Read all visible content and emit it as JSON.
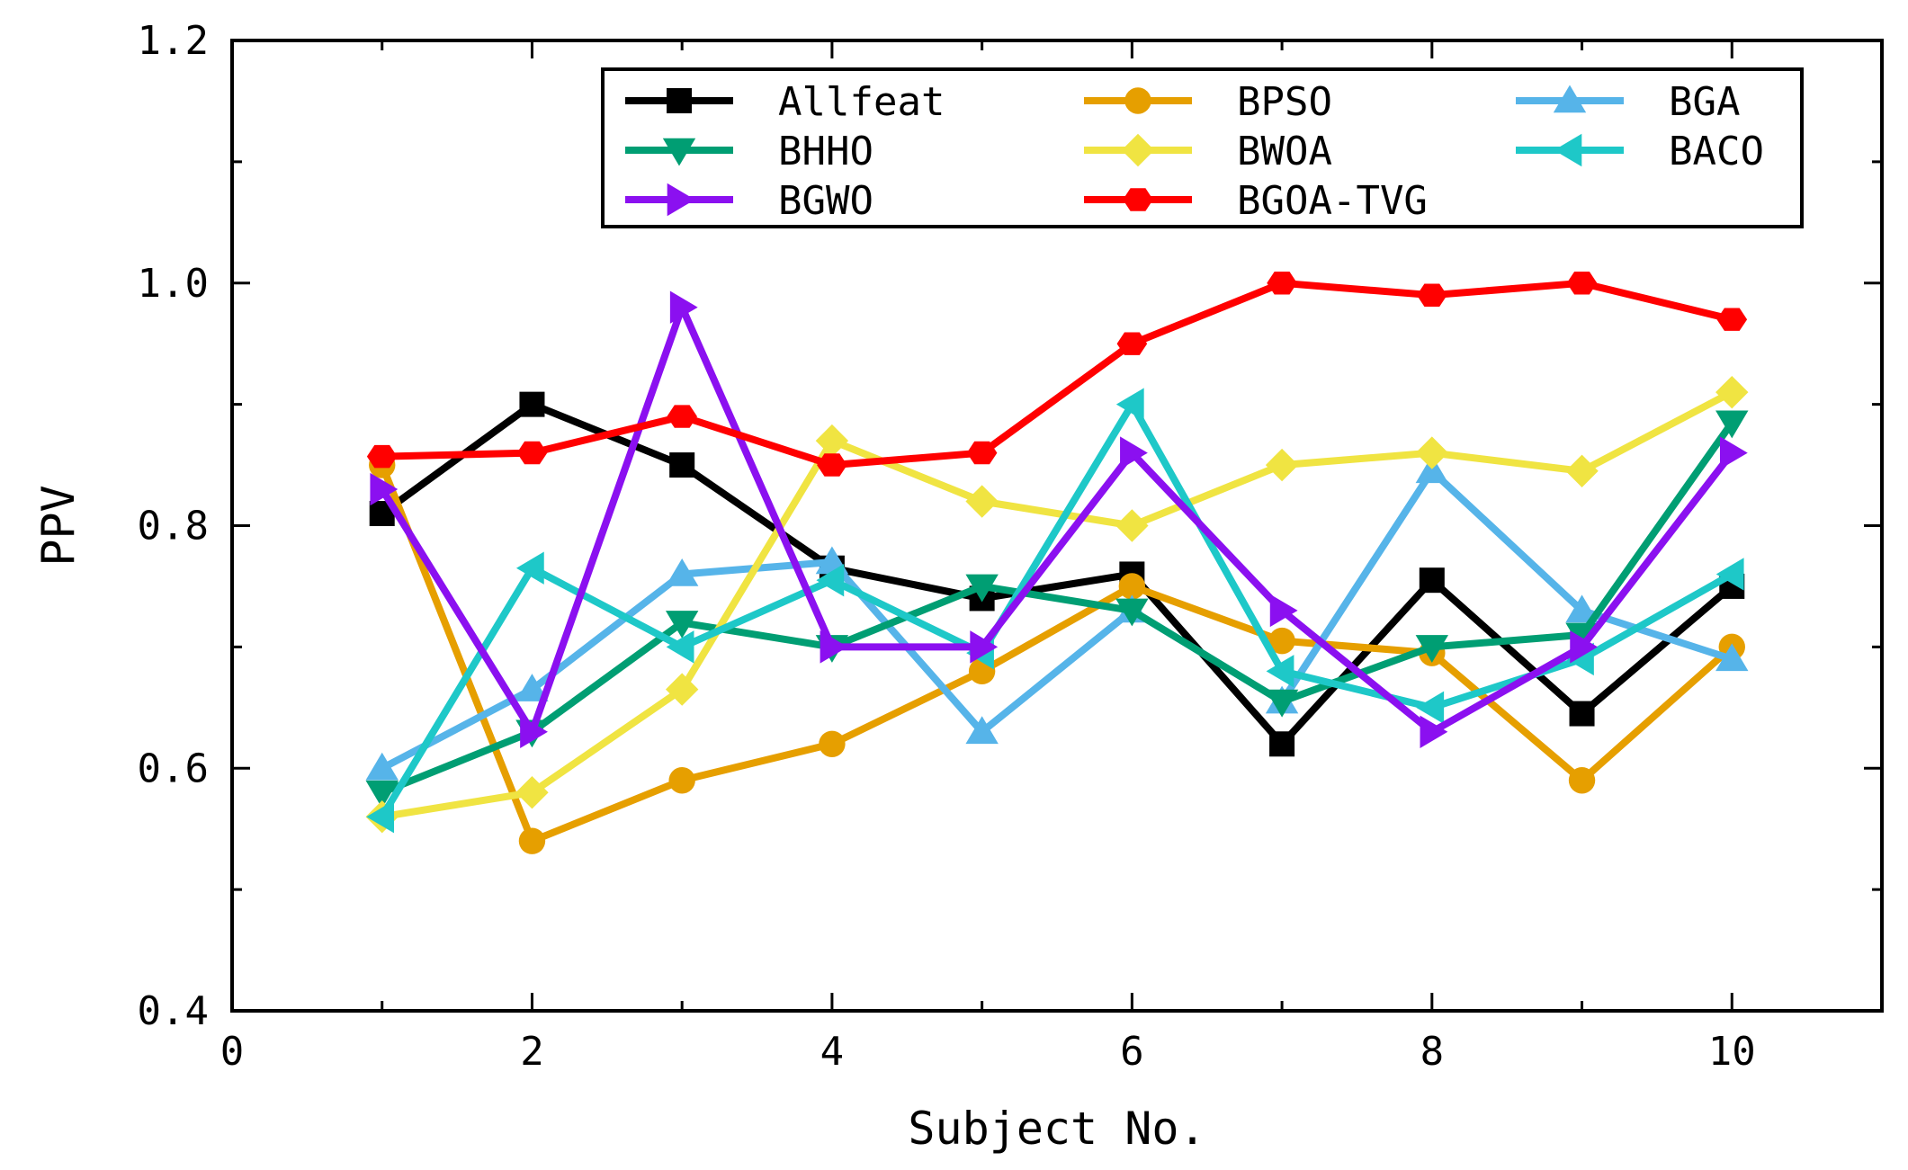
{
  "chart_data": {
    "type": "line",
    "title": "",
    "xlabel": "Subject No.",
    "ylabel": "PPV",
    "xlim": [
      0,
      11
    ],
    "ylim": [
      0.4,
      1.2
    ],
    "xticks": [
      0,
      2,
      4,
      6,
      8,
      10
    ],
    "xtick_labels": [
      "0",
      "2",
      "4",
      "6",
      "8",
      "10"
    ],
    "yticks": [
      0.4,
      0.6,
      0.8,
      1.0,
      1.2
    ],
    "ytick_labels": [
      "0.4",
      "0.6",
      "0.8",
      "1.0",
      "1.2"
    ],
    "grid": false,
    "legend_position": "top-right",
    "x": [
      1,
      2,
      3,
      4,
      5,
      6,
      7,
      8,
      9,
      10
    ],
    "series": [
      {
        "name": "Allfeat",
        "color": "#000000",
        "marker": "square",
        "values": [
          0.81,
          0.9,
          0.85,
          0.765,
          0.74,
          0.76,
          0.62,
          0.755,
          0.645,
          0.75
        ]
      },
      {
        "name": "BPSO",
        "color": "#E69F00",
        "marker": "circle",
        "values": [
          0.85,
          0.54,
          0.59,
          0.62,
          0.68,
          0.75,
          0.705,
          0.695,
          0.59,
          0.7
        ]
      },
      {
        "name": "BGA",
        "color": "#56B4E9",
        "marker": "triangle-up",
        "values": [
          0.6,
          0.665,
          0.76,
          0.77,
          0.63,
          0.73,
          0.655,
          0.845,
          0.73,
          0.69
        ]
      },
      {
        "name": "BHHO",
        "color": "#009E73",
        "marker": "triangle-down",
        "values": [
          0.58,
          0.63,
          0.72,
          0.7,
          0.75,
          0.73,
          0.655,
          0.7,
          0.71,
          0.885
        ]
      },
      {
        "name": "BWOA",
        "color": "#F0E442",
        "marker": "diamond",
        "values": [
          0.56,
          0.58,
          0.665,
          0.87,
          0.82,
          0.8,
          0.85,
          0.86,
          0.845,
          0.91
        ]
      },
      {
        "name": "BACO",
        "color": "#1EC8C8",
        "marker": "triangle-left",
        "values": [
          0.56,
          0.765,
          0.7,
          0.755,
          0.695,
          0.9,
          0.68,
          0.65,
          0.69,
          0.76
        ]
      },
      {
        "name": "BGWO",
        "color": "#8B10F0",
        "marker": "triangle-right",
        "values": [
          0.83,
          0.63,
          0.98,
          0.7,
          0.7,
          0.86,
          0.73,
          0.63,
          0.7,
          0.86
        ]
      },
      {
        "name": "BGOA-TVG",
        "color": "#FF0000",
        "marker": "hexagon",
        "values": [
          0.857,
          0.86,
          0.89,
          0.85,
          0.86,
          0.95,
          1.0,
          0.99,
          1.0,
          0.97
        ]
      }
    ],
    "legend_order": [
      [
        "Allfeat",
        "BPSO",
        "BGA"
      ],
      [
        "BHHO",
        "BWOA",
        "BACO"
      ],
      [
        "BGWO",
        "BGOA-TVG"
      ]
    ]
  }
}
